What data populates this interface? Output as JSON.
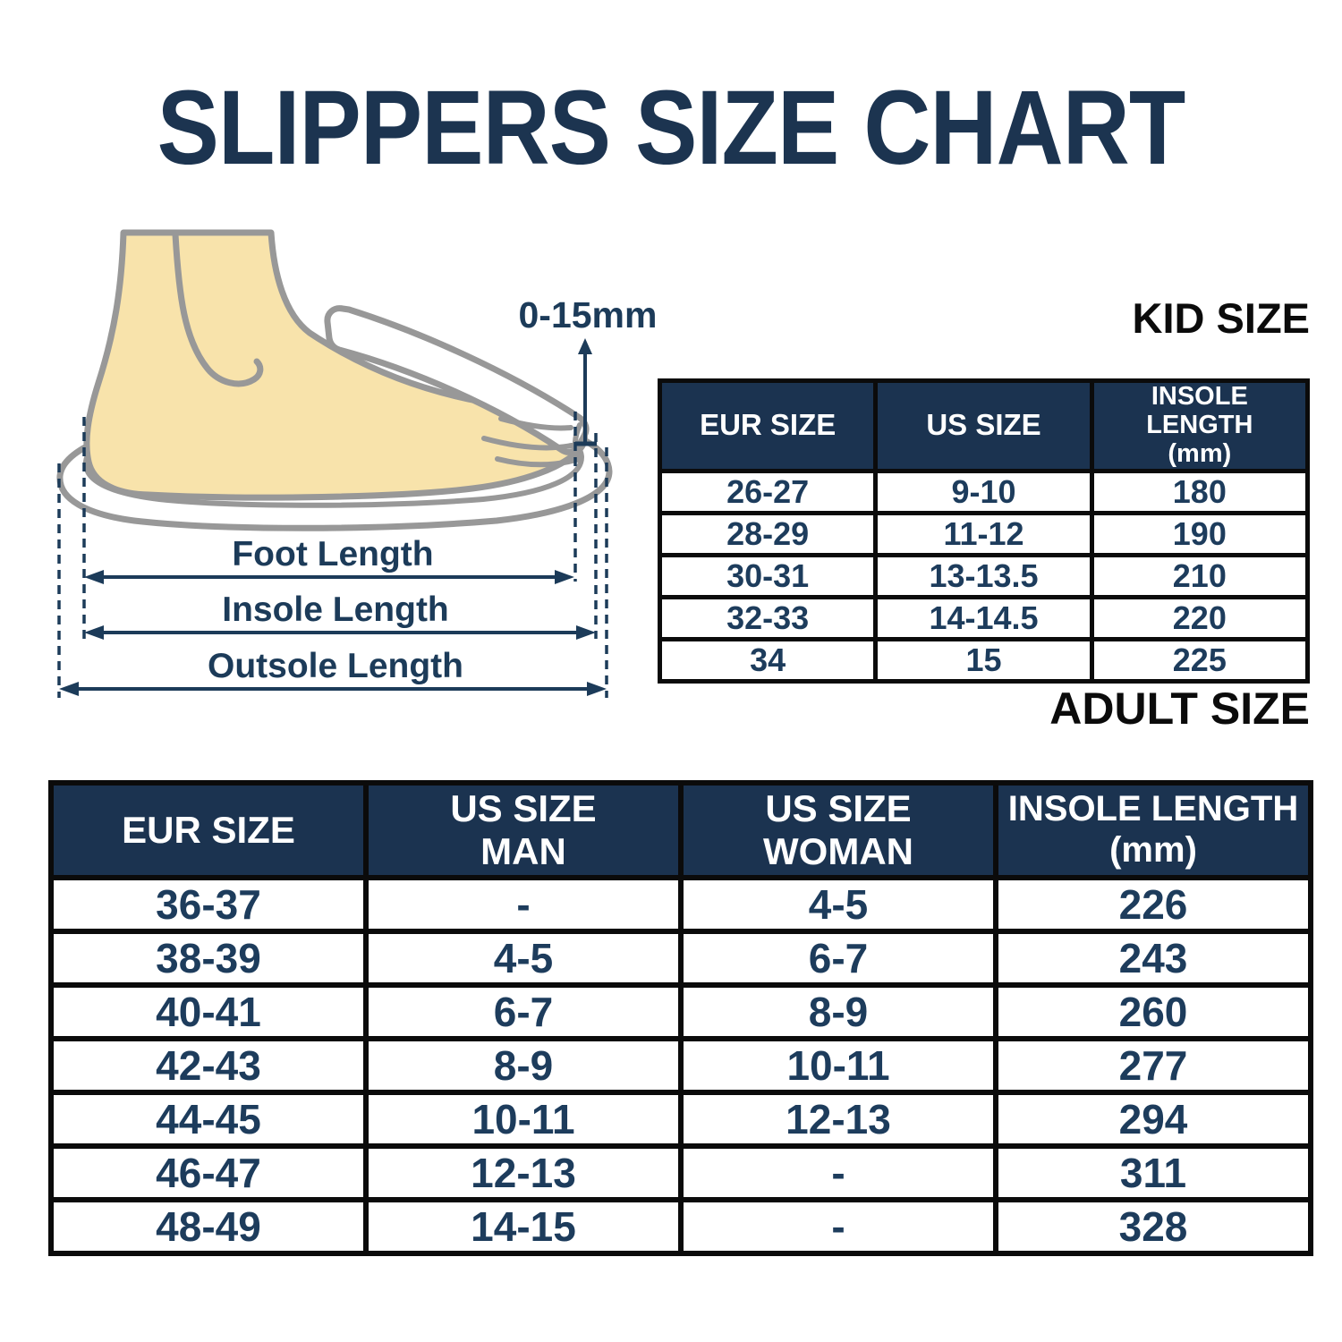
{
  "title": "SLIPPERS SIZE CHART",
  "diagram": {
    "toe_gap_label": "0-15mm",
    "foot_length_label": "Foot Length",
    "insole_length_label": "Insole Length",
    "outsole_length_label": "Outsole Length"
  },
  "kid_table": {
    "section_label": "KID SIZE",
    "columns": [
      "EUR SIZE",
      "US SIZE",
      "INSOLE LENGTH\n(mm)"
    ],
    "rows": [
      [
        "26-27",
        "9-10",
        "180"
      ],
      [
        "28-29",
        "11-12",
        "190"
      ],
      [
        "30-31",
        "13-13.5",
        "210"
      ],
      [
        "32-33",
        "14-14.5",
        "220"
      ],
      [
        "34",
        "15",
        "225"
      ]
    ]
  },
  "adult_table": {
    "section_label": "ADULT SIZE",
    "columns": [
      "EUR SIZE",
      "US SIZE\nMAN",
      "US SIZE\nWOMAN",
      "INSOLE LENGTH\n(mm)"
    ],
    "rows": [
      [
        "36-37",
        "-",
        "4-5",
        "226"
      ],
      [
        "38-39",
        "4-5",
        "6-7",
        "243"
      ],
      [
        "40-41",
        "6-7",
        "8-9",
        "260"
      ],
      [
        "42-43",
        "8-9",
        "10-11",
        "277"
      ],
      [
        "44-45",
        "10-11",
        "12-13",
        "294"
      ],
      [
        "46-47",
        "12-13",
        "-",
        "311"
      ],
      [
        "48-49",
        "14-15",
        "-",
        "328"
      ]
    ]
  },
  "colors": {
    "navy_text": "#1d3c5c",
    "header_bg": "#1b3350",
    "title_color": "#1c3450",
    "label_black": "#0b0b0b",
    "dimension_navy": "#1c3b59",
    "foot_fill": "#f8e3ab",
    "outline_gray": "#989898"
  }
}
